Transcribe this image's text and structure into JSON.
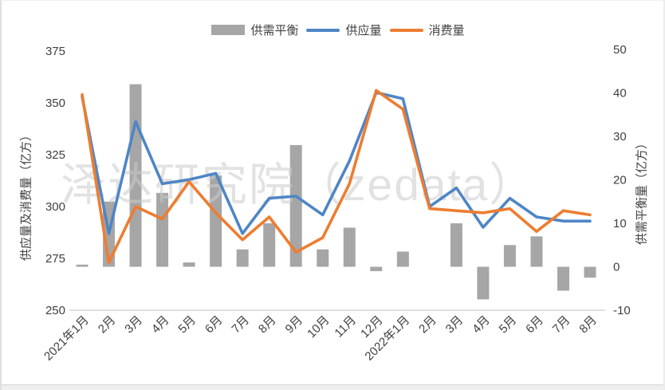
{
  "watermark": "泽达研究院（zedata）",
  "colors": {
    "balance_bar": "#a6a6a6",
    "supply_line": "#4e86c6",
    "consumption_line": "#ed7d31",
    "axis_line": "#bfbfbf",
    "tick_text": "#404040",
    "watermark_gray": "#cccccc"
  },
  "legend": [
    {
      "label": "供需平衡",
      "type": "bar",
      "color": "#a6a6a6"
    },
    {
      "label": "供应量",
      "type": "line",
      "color": "#4e86c6"
    },
    {
      "label": "消费量",
      "type": "line",
      "color": "#ed7d31"
    }
  ],
  "chart_data": {
    "type": "combo-bar-line",
    "categories": [
      "2021年1月",
      "2月",
      "3月",
      "4月",
      "5月",
      "6月",
      "7月",
      "8月",
      "9月",
      "10月",
      "11月",
      "12月",
      "2022年1月",
      "2月",
      "3月",
      "4月",
      "5月",
      "6月",
      "7月",
      "8月"
    ],
    "series": [
      {
        "name": "供需平衡",
        "type": "bar",
        "axis": "right",
        "color": "#a6a6a6",
        "values": [
          0.5,
          15,
          42,
          17,
          1,
          21,
          4,
          10,
          28,
          4,
          9,
          -1,
          3.5,
          0,
          10,
          -7.5,
          5,
          7,
          -5.5,
          -2.5
        ]
      },
      {
        "name": "供应量",
        "type": "line",
        "axis": "left",
        "color": "#4e86c6",
        "values": [
          353,
          287,
          341,
          311,
          313,
          316,
          287,
          304,
          305,
          296,
          322,
          355,
          352,
          300,
          309,
          290,
          304,
          295,
          293,
          293
        ]
      },
      {
        "name": "消费量",
        "type": "line",
        "axis": "left",
        "color": "#ed7d31",
        "values": [
          354,
          273,
          300,
          294,
          312,
          297,
          284,
          295,
          278,
          285,
          311,
          356,
          347,
          299,
          298,
          297,
          299,
          288,
          298,
          296
        ]
      }
    ],
    "left_axis": {
      "title": "供应量及消费量（亿方）",
      "min": 250,
      "max": 375,
      "step": 25,
      "ticks": [
        250,
        275,
        300,
        325,
        350,
        375
      ]
    },
    "right_axis": {
      "title": "供需平衡量（亿方）",
      "min": -10,
      "max": 50,
      "step": 10,
      "ticks": [
        -10,
        0,
        10,
        20,
        30,
        40,
        50
      ]
    },
    "grid": false,
    "legend_position": "top"
  }
}
